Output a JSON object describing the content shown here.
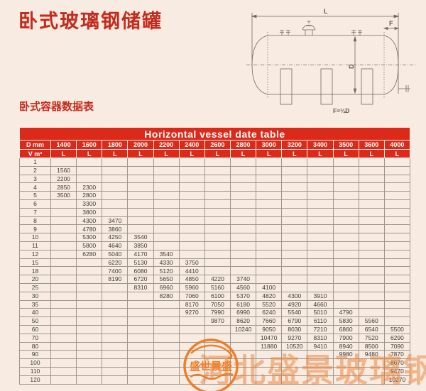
{
  "page": {
    "title": "卧式玻璃钢储罐",
    "subtitle": "卧式容器数据表"
  },
  "colors": {
    "background": "#f8ece2",
    "accent_red": "#dc2a1a",
    "title_red": "#c52a1c",
    "watermark_orange": "#f0791e",
    "grid_line": "#9e968c"
  },
  "diagram": {
    "dim_length_label": "L",
    "dim_head_label": "F",
    "dim_diameter_label": "D",
    "formula": "F=¼D"
  },
  "table": {
    "title": "Horizontal vessel date table",
    "corner_top": "D mm",
    "corner_bottom": "V m³",
    "unit_label": "L",
    "columns": [
      "1400",
      "1600",
      "1800",
      "2000",
      "2200",
      "2400",
      "2600",
      "2800",
      "3000",
      "3200",
      "3400",
      "3500",
      "3600",
      "4000"
    ],
    "rows": [
      {
        "v": "1",
        "cells": [
          "",
          "",
          "",
          "",
          "",
          "",
          "",
          "",
          "",
          "",
          "",
          "",
          "",
          ""
        ]
      },
      {
        "v": "2",
        "cells": [
          "1560",
          "",
          "",
          "",
          "",
          "",
          "",
          "",
          "",
          "",
          "",
          "",
          "",
          ""
        ]
      },
      {
        "v": "3",
        "cells": [
          "2200",
          "",
          "",
          "",
          "",
          "",
          "",
          "",
          "",
          "",
          "",
          "",
          "",
          ""
        ]
      },
      {
        "v": "4",
        "cells": [
          "2850",
          "2300",
          "",
          "",
          "",
          "",
          "",
          "",
          "",
          "",
          "",
          "",
          "",
          ""
        ]
      },
      {
        "v": "5",
        "cells": [
          "3500",
          "2800",
          "",
          "",
          "",
          "",
          "",
          "",
          "",
          "",
          "",
          "",
          "",
          ""
        ]
      },
      {
        "v": "6",
        "cells": [
          "",
          "3300",
          "",
          "",
          "",
          "",
          "",
          "",
          "",
          "",
          "",
          "",
          "",
          ""
        ]
      },
      {
        "v": "7",
        "cells": [
          "",
          "3800",
          "",
          "",
          "",
          "",
          "",
          "",
          "",
          "",
          "",
          "",
          "",
          ""
        ]
      },
      {
        "v": "8",
        "cells": [
          "",
          "4300",
          "3470",
          "",
          "",
          "",
          "",
          "",
          "",
          "",
          "",
          "",
          "",
          ""
        ]
      },
      {
        "v": "9",
        "cells": [
          "",
          "4780",
          "3860",
          "",
          "",
          "",
          "",
          "",
          "",
          "",
          "",
          "",
          "",
          ""
        ]
      },
      {
        "v": "10",
        "cells": [
          "",
          "5300",
          "4250",
          "3540",
          "",
          "",
          "",
          "",
          "",
          "",
          "",
          "",
          "",
          ""
        ]
      },
      {
        "v": "11",
        "cells": [
          "",
          "5800",
          "4640",
          "3850",
          "",
          "",
          "",
          "",
          "",
          "",
          "",
          "",
          "",
          ""
        ]
      },
      {
        "v": "12",
        "cells": [
          "",
          "6280",
          "5040",
          "4170",
          "3540",
          "",
          "",
          "",
          "",
          "",
          "",
          "",
          "",
          ""
        ]
      },
      {
        "v": "15",
        "cells": [
          "",
          "",
          "6220",
          "5130",
          "4330",
          "3750",
          "",
          "",
          "",
          "",
          "",
          "",
          "",
          ""
        ]
      },
      {
        "v": "18",
        "cells": [
          "",
          "",
          "7400",
          "6080",
          "5120",
          "4410",
          "",
          "",
          "",
          "",
          "",
          "",
          "",
          ""
        ]
      },
      {
        "v": "20",
        "cells": [
          "",
          "",
          "8190",
          "6720",
          "5650",
          "4850",
          "4220",
          "3740",
          "",
          "",
          "",
          "",
          "",
          ""
        ]
      },
      {
        "v": "25",
        "cells": [
          "",
          "",
          "",
          "8310",
          "6960",
          "5960",
          "5160",
          "4560",
          "4100",
          "",
          "",
          "",
          "",
          ""
        ]
      },
      {
        "v": "30",
        "cells": [
          "",
          "",
          "",
          "",
          "8280",
          "7060",
          "6100",
          "5370",
          "4820",
          "4300",
          "3910",
          "",
          "",
          ""
        ]
      },
      {
        "v": "35",
        "cells": [
          "",
          "",
          "",
          "",
          "",
          "8170",
          "7050",
          "6180",
          "5520",
          "4920",
          "4660",
          "",
          "",
          ""
        ]
      },
      {
        "v": "40",
        "cells": [
          "",
          "",
          "",
          "",
          "",
          "9270",
          "7990",
          "6990",
          "6240",
          "5540",
          "5010",
          "4790",
          "",
          ""
        ]
      },
      {
        "v": "50",
        "cells": [
          "",
          "",
          "",
          "",
          "",
          "",
          "9870",
          "8620",
          "7660",
          "6790",
          "6110",
          "5830",
          "5560",
          ""
        ]
      },
      {
        "v": "60",
        "cells": [
          "",
          "",
          "",
          "",
          "",
          "",
          "",
          "10240",
          "9050",
          "8030",
          "7210",
          "6860",
          "6540",
          "5500"
        ]
      },
      {
        "v": "70",
        "cells": [
          "",
          "",
          "",
          "",
          "",
          "",
          "",
          "",
          "10470",
          "9270",
          "8310",
          "7900",
          "7520",
          "6290"
        ]
      },
      {
        "v": "80",
        "cells": [
          "",
          "",
          "",
          "",
          "",
          "",
          "",
          "",
          "11880",
          "10520",
          "9410",
          "8940",
          "8500",
          "7090"
        ]
      },
      {
        "v": "90",
        "cells": [
          "",
          "",
          "",
          "",
          "",
          "",
          "",
          "",
          "",
          "",
          "",
          "9980",
          "9480",
          "7870"
        ]
      },
      {
        "v": "100",
        "cells": [
          "",
          "",
          "",
          "",
          "",
          "",
          "",
          "",
          "",
          "",
          "",
          "",
          "",
          "8670"
        ]
      },
      {
        "v": "110",
        "cells": [
          "",
          "",
          "",
          "",
          "",
          "",
          "",
          "",
          "",
          "",
          "",
          "",
          "",
          "9470"
        ]
      },
      {
        "v": "120",
        "cells": [
          "",
          "",
          "",
          "",
          "",
          "",
          "",
          "",
          "",
          "",
          "",
          "",
          "",
          "10270"
        ]
      }
    ]
  },
  "watermark": {
    "logo_text": "盛世景盛",
    "text": "河北盛景玻璃钢"
  }
}
